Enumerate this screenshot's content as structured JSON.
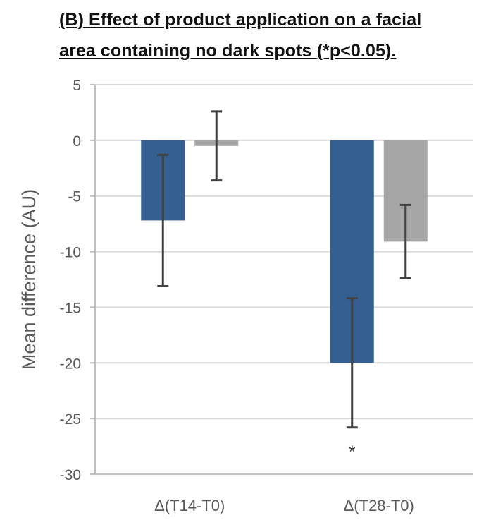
{
  "chart_data": {
    "type": "bar",
    "title_lines": [
      "(B) Effect of product application on a facial",
      "area containing no dark spots (*p<0.05)."
    ],
    "xlabel": "",
    "ylabel": "Mean difference (AU)",
    "ylim": [
      -30,
      5
    ],
    "yticks": [
      "5",
      "0",
      "-5",
      "-10",
      "-15",
      "-20",
      "-25",
      "-30"
    ],
    "grid": true,
    "legend": "none",
    "categories": [
      "Δ(T14-T0)",
      "Δ(T28-T0)"
    ],
    "series": [
      {
        "color": "#365f91",
        "values": [
          -7.2,
          -20.0
        ],
        "error": [
          5.9,
          5.8
        ]
      },
      {
        "color": "#a6a6a6",
        "values": [
          -0.5,
          -9.1
        ],
        "error": [
          3.1,
          3.3
        ]
      }
    ],
    "annotations": [
      {
        "text": "*",
        "category": 1,
        "series": 0
      }
    ]
  }
}
